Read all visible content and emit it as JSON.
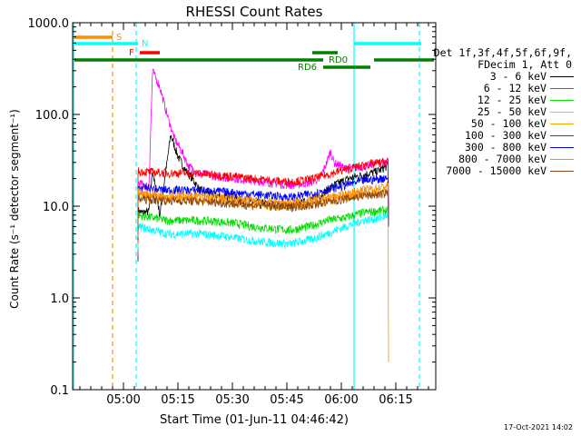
{
  "chart_data": {
    "type": "line",
    "title": "RHESSI Count Rates",
    "xlabel": "Start Time (01-Jun-11 04:46:42)",
    "ylabel": "Count Rate (s⁻¹ detector segment⁻¹)",
    "ylog": true,
    "ylim": [
      0.1,
      1000
    ],
    "xlim_minutes_after_0446": [
      0,
      100
    ],
    "yticks": [
      0.1,
      1.0,
      10.0,
      100.0,
      1000.0
    ],
    "ytick_labels": [
      "0.1",
      "1.0",
      "10.0",
      "100.0",
      "1000.0"
    ],
    "xticks_minutes_after_0446": [
      14,
      29,
      44,
      59,
      74,
      89
    ],
    "xtick_labels": [
      "05:00",
      "05:15",
      "05:30",
      "05:45",
      "06:00",
      "06:15"
    ],
    "legend_header": [
      "Det 1f,3f,4f,5f,6f,9f,",
      "FDecim 1, Att 0"
    ],
    "series": [
      {
        "name": "3 - 6 keV",
        "color": "#000000",
        "points": [
          [
            18,
            9
          ],
          [
            19,
            8.5
          ],
          [
            21,
            8.7
          ],
          [
            22,
            25
          ],
          [
            24,
            8
          ],
          [
            26,
            30
          ],
          [
            27,
            60
          ],
          [
            29,
            35
          ],
          [
            31,
            25
          ],
          [
            33,
            20
          ],
          [
            35,
            15
          ],
          [
            40,
            13
          ],
          [
            45,
            12
          ],
          [
            50,
            11
          ],
          [
            55,
            10.5
          ],
          [
            60,
            10
          ],
          [
            64,
            11
          ],
          [
            68,
            13
          ],
          [
            72,
            17
          ],
          [
            76,
            20
          ],
          [
            80,
            22
          ],
          [
            84,
            24
          ],
          [
            87,
            28
          ]
        ]
      },
      {
        "name": "6 - 12 keV",
        "color": "#ff00ff",
        "points": [
          [
            18,
            18
          ],
          [
            20,
            17
          ],
          [
            21,
            16
          ],
          [
            22,
            300
          ],
          [
            24,
            200
          ],
          [
            26,
            100
          ],
          [
            28,
            55
          ],
          [
            30,
            40
          ],
          [
            32,
            27
          ],
          [
            35,
            23
          ],
          [
            40,
            21
          ],
          [
            45,
            20
          ],
          [
            50,
            19
          ],
          [
            55,
            18
          ],
          [
            60,
            17
          ],
          [
            65,
            18
          ],
          [
            68,
            20
          ],
          [
            70,
            30
          ],
          [
            71,
            40
          ],
          [
            72,
            30
          ],
          [
            75,
            26
          ],
          [
            80,
            27
          ],
          [
            85,
            30
          ],
          [
            87,
            31
          ]
        ]
      },
      {
        "name": "12 - 25 keV",
        "color": "#00dd00",
        "points": [
          [
            18,
            8
          ],
          [
            22,
            7.5
          ],
          [
            26,
            7
          ],
          [
            30,
            7
          ],
          [
            35,
            7
          ],
          [
            40,
            6.8
          ],
          [
            45,
            6.5
          ],
          [
            50,
            6
          ],
          [
            55,
            5.7
          ],
          [
            60,
            5.5
          ],
          [
            65,
            6
          ],
          [
            70,
            7
          ],
          [
            75,
            7.5
          ],
          [
            80,
            8.5
          ],
          [
            85,
            9
          ],
          [
            87,
            9
          ]
        ]
      },
      {
        "name": "25 - 50 keV",
        "color": "#00ffff",
        "points": [
          [
            18,
            6
          ],
          [
            22,
            5.5
          ],
          [
            26,
            5
          ],
          [
            30,
            5
          ],
          [
            35,
            5
          ],
          [
            40,
            4.8
          ],
          [
            45,
            4.5
          ],
          [
            50,
            4.2
          ],
          [
            55,
            4
          ],
          [
            60,
            3.9
          ],
          [
            65,
            4.3
          ],
          [
            70,
            5
          ],
          [
            75,
            6
          ],
          [
            80,
            7
          ],
          [
            85,
            7.5
          ],
          [
            87,
            8
          ]
        ]
      },
      {
        "name": "50 - 100 keV",
        "color": "#ffa500",
        "points": [
          [
            18,
            13
          ],
          [
            22,
            12.5
          ],
          [
            26,
            12
          ],
          [
            30,
            12
          ],
          [
            35,
            11.8
          ],
          [
            40,
            11.5
          ],
          [
            45,
            11
          ],
          [
            50,
            10.5
          ],
          [
            55,
            10
          ],
          [
            60,
            10
          ],
          [
            65,
            10.5
          ],
          [
            70,
            11.5
          ],
          [
            75,
            12.5
          ],
          [
            80,
            13.5
          ],
          [
            85,
            14
          ],
          [
            87,
            14.5
          ]
        ]
      },
      {
        "name": "100 - 300 keV",
        "color": "#ff0000",
        "points": [
          [
            18,
            24
          ],
          [
            22,
            23.5
          ],
          [
            26,
            23
          ],
          [
            30,
            23
          ],
          [
            35,
            22.5
          ],
          [
            40,
            22
          ],
          [
            45,
            21
          ],
          [
            50,
            20
          ],
          [
            55,
            19
          ],
          [
            60,
            18.5
          ],
          [
            65,
            19.5
          ],
          [
            70,
            22
          ],
          [
            75,
            25
          ],
          [
            80,
            28
          ],
          [
            85,
            30
          ],
          [
            87,
            31
          ]
        ]
      },
      {
        "name": "300 - 800 keV",
        "color": "#0000ff",
        "points": [
          [
            18,
            16
          ],
          [
            22,
            15.5
          ],
          [
            26,
            15
          ],
          [
            30,
            15
          ],
          [
            35,
            14.8
          ],
          [
            40,
            14.5
          ],
          [
            45,
            14
          ],
          [
            50,
            13.5
          ],
          [
            55,
            13
          ],
          [
            60,
            12.5
          ],
          [
            65,
            13.5
          ],
          [
            70,
            15
          ],
          [
            75,
            17
          ],
          [
            80,
            19
          ],
          [
            85,
            20
          ],
          [
            87,
            21
          ]
        ]
      },
      {
        "name": "800 - 7000 keV",
        "color": "#ff8c00",
        "points": [
          [
            18,
            14
          ],
          [
            22,
            13.5
          ],
          [
            26,
            13
          ],
          [
            30,
            13
          ],
          [
            35,
            12.8
          ],
          [
            40,
            12.5
          ],
          [
            45,
            12
          ],
          [
            50,
            11.5
          ],
          [
            55,
            11
          ],
          [
            60,
            11
          ],
          [
            65,
            11.5
          ],
          [
            70,
            12.5
          ],
          [
            75,
            13.5
          ],
          [
            80,
            15
          ],
          [
            85,
            16
          ],
          [
            87,
            17
          ]
        ]
      },
      {
        "name": "7000 - 15000 keV",
        "color": "#8b4513",
        "points": [
          [
            18,
            12
          ],
          [
            22,
            11.8
          ],
          [
            26,
            11.5
          ],
          [
            30,
            11.5
          ],
          [
            35,
            11.3
          ],
          [
            40,
            11
          ],
          [
            45,
            10.5
          ],
          [
            50,
            10.2
          ],
          [
            55,
            10
          ],
          [
            60,
            9.8
          ],
          [
            65,
            10.2
          ],
          [
            70,
            11
          ],
          [
            75,
            12
          ],
          [
            80,
            13
          ],
          [
            85,
            13.5
          ],
          [
            87,
            14
          ]
        ]
      }
    ],
    "annotations": [
      {
        "text": "S",
        "color": "#ff8c00"
      },
      {
        "text": "N",
        "color": "#00ffff"
      },
      {
        "text": "F",
        "color": "#ff0000"
      },
      {
        "text": "RD0",
        "color": "#008000"
      },
      {
        "text": "RD6",
        "color": "#008000"
      }
    ],
    "footer_timestamp": "17-Oct-2021 14:02"
  }
}
